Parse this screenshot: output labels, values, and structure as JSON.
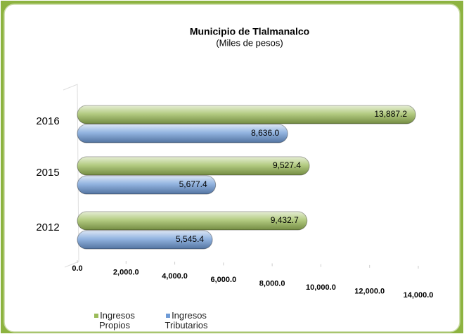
{
  "chart_data": {
    "type": "bar",
    "orientation": "horizontal",
    "title": "Municipio de  Tlalmanalco",
    "subtitle": "(Miles de pesos)",
    "categories": [
      "2016",
      "2015",
      "2012"
    ],
    "series": [
      {
        "name": "Ingresos Propios",
        "color": "#9bbb59",
        "values": [
          13887.2,
          9527.4,
          9432.7
        ],
        "value_labels": [
          "13,887.2",
          "9,527.4",
          "9,432.7"
        ]
      },
      {
        "name": "Ingresos Tributarios",
        "color": "#6f9bd6",
        "values": [
          8636.0,
          5677.4,
          5545.4
        ],
        "value_labels": [
          "8,636.0",
          "5,677.4",
          "5,545.4"
        ]
      }
    ],
    "xlim": [
      0,
      14000
    ],
    "xticks": [
      {
        "value": 0,
        "label": "0.0"
      },
      {
        "value": 2000,
        "label": "2,000.0"
      },
      {
        "value": 4000,
        "label": "4,000.0"
      },
      {
        "value": 6000,
        "label": "6,000.0"
      },
      {
        "value": 8000,
        "label": "8,000.0"
      },
      {
        "value": 10000,
        "label": "10,000.0"
      },
      {
        "value": 12000,
        "label": "12,000.0"
      },
      {
        "value": 14000,
        "label": "14,000.0"
      }
    ]
  }
}
